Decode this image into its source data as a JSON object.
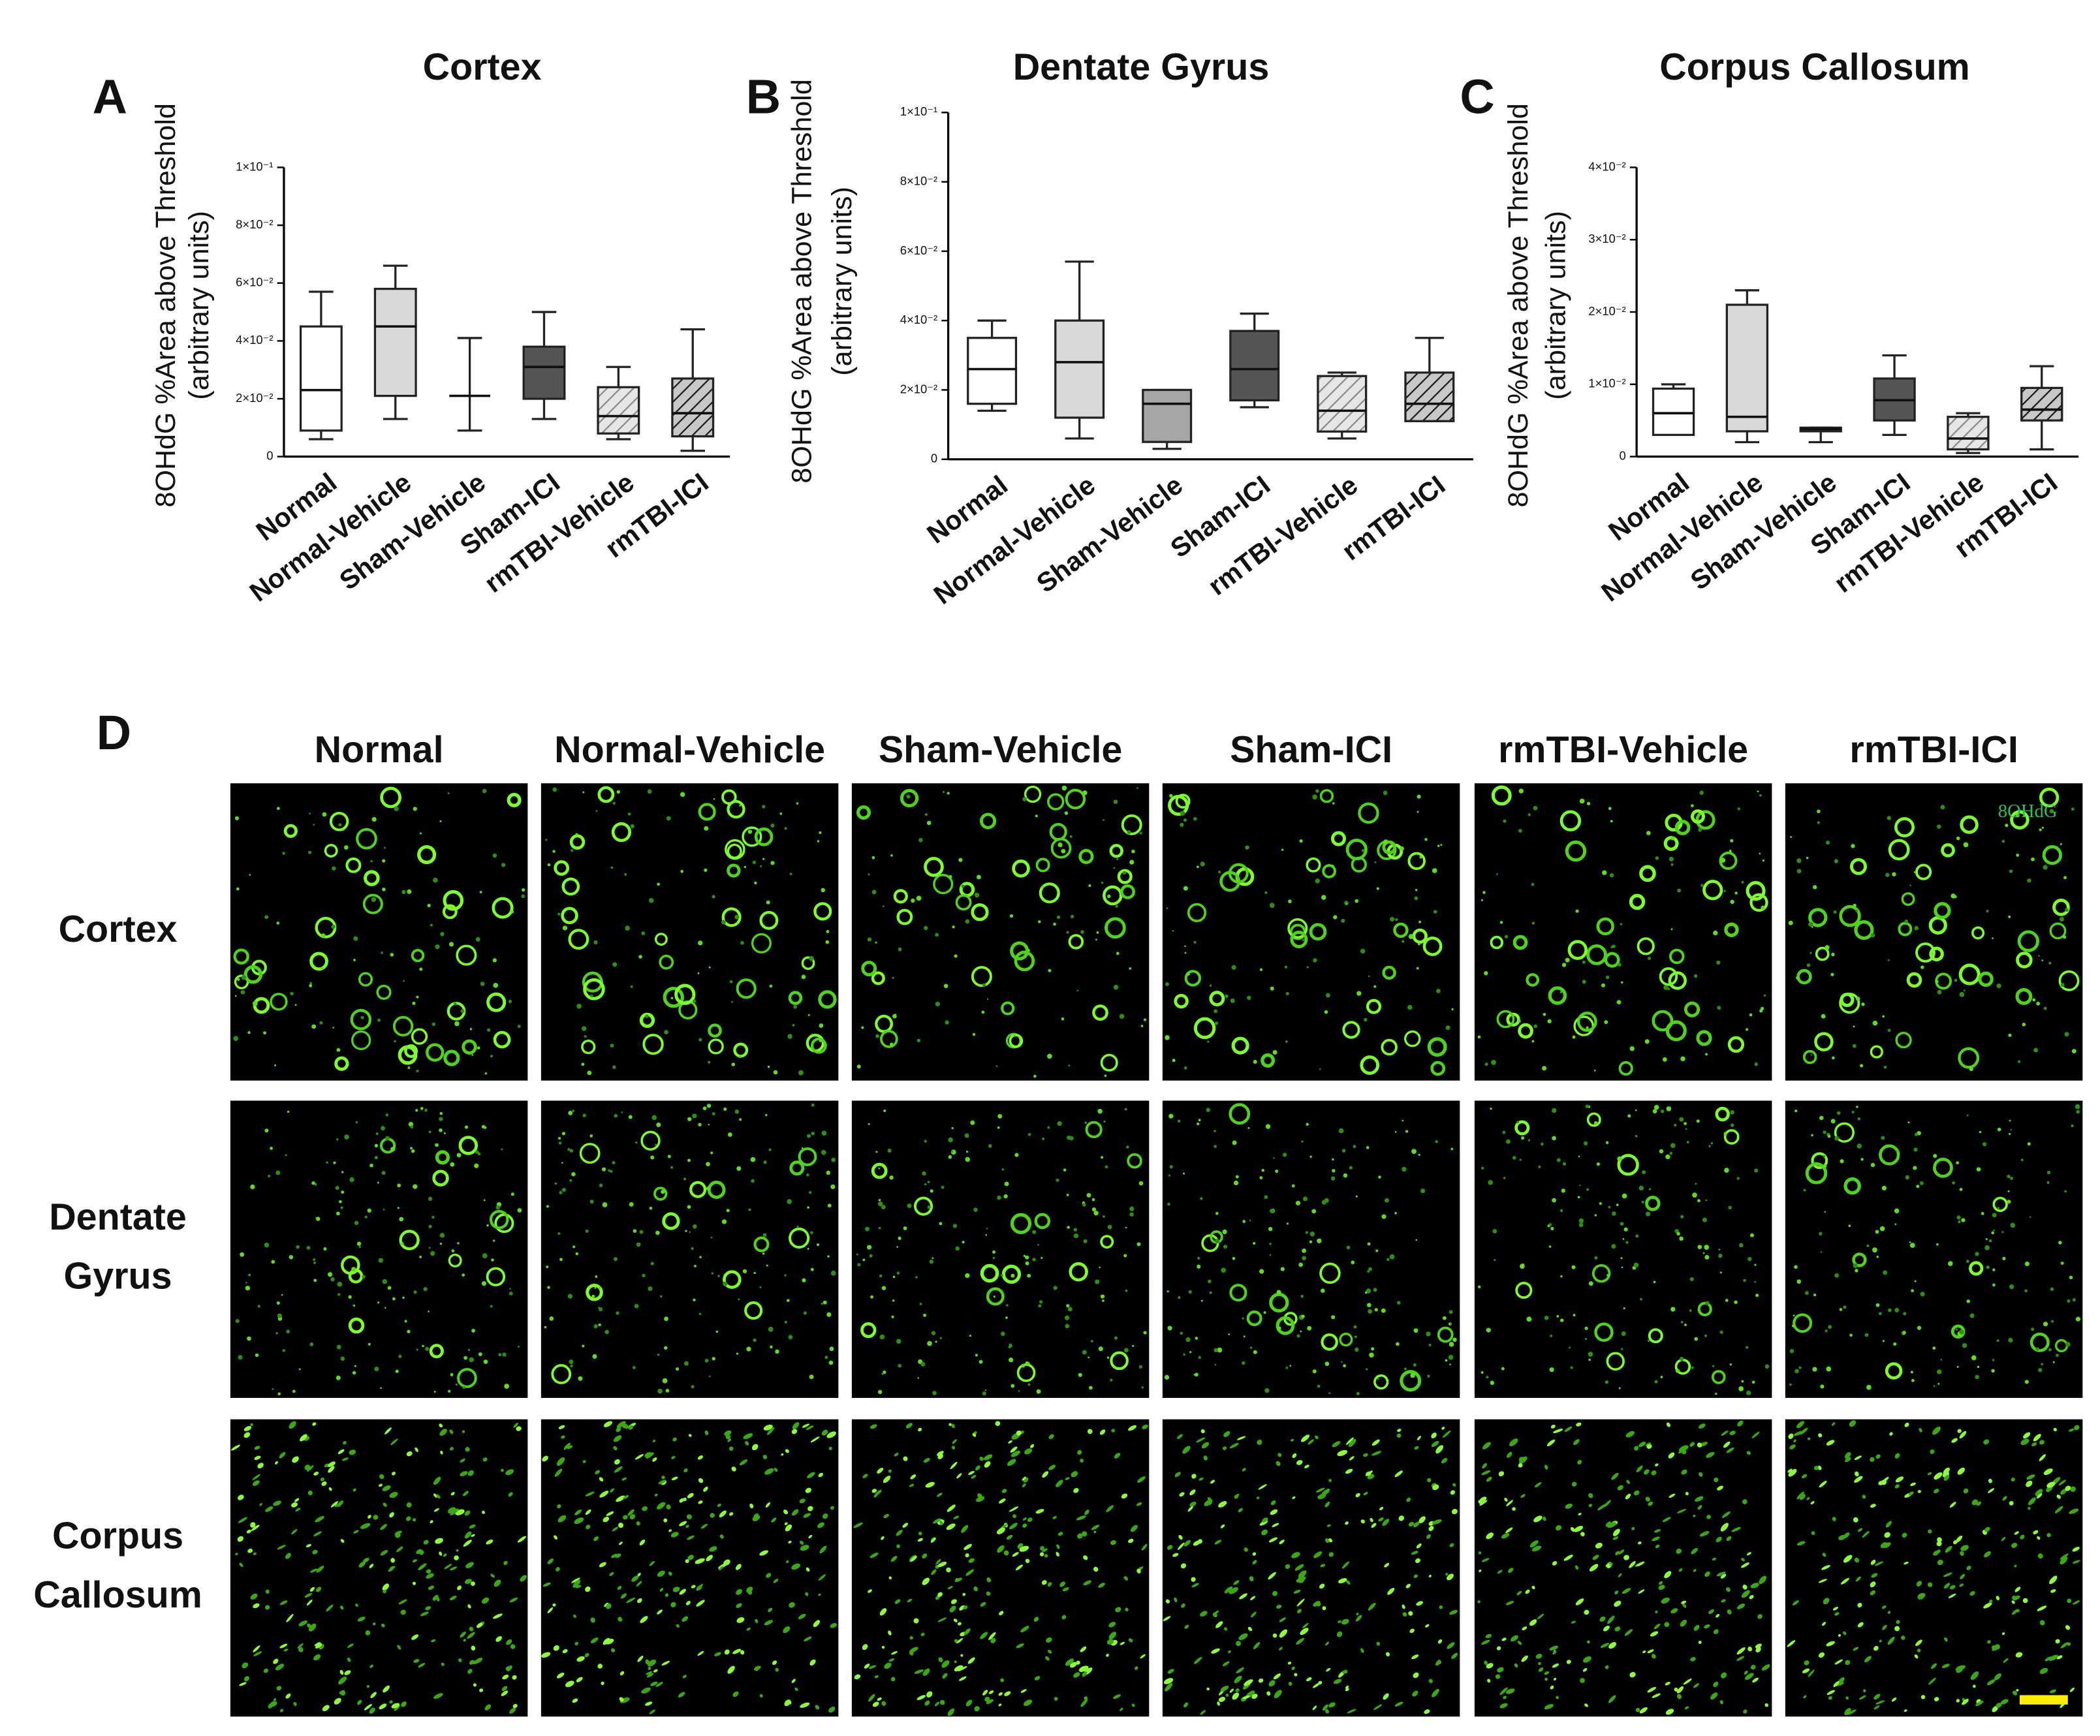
{
  "chart_data": [
    {
      "type": "box",
      "panel": "A",
      "title": "Cortex",
      "ylabel": [
        "8OHdG %Area above Threshold",
        "(arbitrary units)"
      ],
      "categories": [
        "Normal",
        "Normal-Vehicle",
        "Sham-Vehicle",
        "Sham-ICI",
        "rmTBI-Vehicle",
        "rmTBI-ICI"
      ],
      "boxes": [
        {
          "min": 0.006,
          "q1": 0.009,
          "median": 0.023,
          "q3": 0.045,
          "max": 0.057
        },
        {
          "min": 0.013,
          "q1": 0.021,
          "median": 0.045,
          "q3": 0.058,
          "max": 0.066
        },
        {
          "min": 0.009,
          "q1": 0.021,
          "median": 0.021,
          "q3": 0.021,
          "max": 0.041
        },
        {
          "min": 0.013,
          "q1": 0.02,
          "median": 0.031,
          "q3": 0.038,
          "max": 0.05
        },
        {
          "min": 0.006,
          "q1": 0.008,
          "median": 0.014,
          "q3": 0.024,
          "max": 0.031
        },
        {
          "min": 0.002,
          "q1": 0.007,
          "median": 0.015,
          "q3": 0.027,
          "max": 0.044
        }
      ],
      "colors": [
        "#ffffff",
        "#d9d9d9",
        "#a6a6a6",
        "#555555",
        "#e6e6e6",
        "#c8c8c8"
      ],
      "hatch_colors": [
        null,
        null,
        null,
        null,
        "#8a8a8a",
        "#1a1a1a"
      ],
      "ylim": [
        0,
        0.1
      ],
      "yticks": [
        0,
        {
          "value": 0.02,
          "label": "2×10⁻²"
        },
        {
          "value": 0.04,
          "label": "4×10⁻²"
        },
        {
          "value": 0.06,
          "label": "6×10⁻²"
        },
        {
          "value": 0.08,
          "label": "8×10⁻²"
        },
        {
          "value": 0.1,
          "label": "1×10⁻¹"
        }
      ]
    },
    {
      "type": "box",
      "panel": "B",
      "title": "Dentate Gyrus",
      "ylabel": [
        "8OHdG %Area above Threshold",
        "(arbitrary units)"
      ],
      "categories": [
        "Normal",
        "Normal-Vehicle",
        "Sham-Vehicle",
        "Sham-ICI",
        "rmTBI-Vehicle",
        "rmTBI-ICI"
      ],
      "boxes": [
        {
          "min": 0.014,
          "q1": 0.016,
          "median": 0.026,
          "q3": 0.035,
          "max": 0.04
        },
        {
          "min": 0.006,
          "q1": 0.012,
          "median": 0.028,
          "q3": 0.04,
          "max": 0.057
        },
        {
          "min": 0.003,
          "q1": 0.005,
          "median": 0.016,
          "q3": 0.02,
          "max": 0.02
        },
        {
          "min": 0.015,
          "q1": 0.017,
          "median": 0.026,
          "q3": 0.037,
          "max": 0.042
        },
        {
          "min": 0.006,
          "q1": 0.008,
          "median": 0.014,
          "q3": 0.024,
          "max": 0.025
        },
        {
          "min": 0.011,
          "q1": 0.011,
          "median": 0.016,
          "q3": 0.025,
          "max": 0.035
        }
      ],
      "colors": [
        "#ffffff",
        "#d9d9d9",
        "#a6a6a6",
        "#555555",
        "#e6e6e6",
        "#c8c8c8"
      ],
      "hatch_colors": [
        null,
        null,
        null,
        null,
        "#8a8a8a",
        "#1a1a1a"
      ],
      "ylim": [
        0,
        0.1
      ],
      "yticks": [
        0,
        {
          "value": 0.02,
          "label": "2×10⁻²"
        },
        {
          "value": 0.04,
          "label": "4×10⁻²"
        },
        {
          "value": 0.06,
          "label": "6×10⁻²"
        },
        {
          "value": 0.08,
          "label": "8×10⁻²"
        },
        {
          "value": 0.1,
          "label": "1×10⁻¹"
        }
      ]
    },
    {
      "type": "box",
      "panel": "C",
      "title": "Corpus Callosum",
      "ylabel": [
        "8OHdG %Area above Threshold",
        "(arbitrary units)"
      ],
      "categories": [
        "Normal",
        "Normal-Vehicle",
        "Sham-Vehicle",
        "Sham-ICI",
        "rmTBI-Vehicle",
        "rmTBI-ICI"
      ],
      "boxes": [
        {
          "min": 0.003,
          "q1": 0.003,
          "median": 0.006,
          "q3": 0.0094,
          "max": 0.01
        },
        {
          "min": 0.002,
          "q1": 0.0035,
          "median": 0.0055,
          "q3": 0.021,
          "max": 0.023
        },
        {
          "min": 0.002,
          "q1": 0.0035,
          "median": 0.0038,
          "q3": 0.004,
          "max": 0.004
        },
        {
          "min": 0.003,
          "q1": 0.005,
          "median": 0.0078,
          "q3": 0.0108,
          "max": 0.014
        },
        {
          "min": 0.0005,
          "q1": 0.001,
          "median": 0.0025,
          "q3": 0.0055,
          "max": 0.006
        },
        {
          "min": 0.001,
          "q1": 0.005,
          "median": 0.0065,
          "q3": 0.0095,
          "max": 0.0125
        }
      ],
      "colors": [
        "#ffffff",
        "#d9d9d9",
        "#a6a6a6",
        "#555555",
        "#e6e6e6",
        "#c8c8c8"
      ],
      "hatch_colors": [
        null,
        null,
        null,
        null,
        "#8a8a8a",
        "#1a1a1a"
      ],
      "ylim": [
        0,
        0.04
      ],
      "yticks": [
        0,
        {
          "value": 0.01,
          "label": "1×10⁻²"
        },
        {
          "value": 0.02,
          "label": "2×10⁻²"
        },
        {
          "value": 0.03,
          "label": "3×10⁻²"
        },
        {
          "value": 0.04,
          "label": "4×10⁻²"
        }
      ]
    }
  ],
  "panel_d": {
    "label": "D",
    "columns": [
      "Normal",
      "Normal-Vehicle",
      "Sham-Vehicle",
      "Sham-ICI",
      "rmTBI-Vehicle",
      "rmTBI-ICI"
    ],
    "rows": [
      [
        "Cortex"
      ],
      [
        "Dentate",
        "Gyrus"
      ],
      [
        "Corpus",
        "Callosum"
      ]
    ],
    "stain_label": "8OHdG"
  }
}
